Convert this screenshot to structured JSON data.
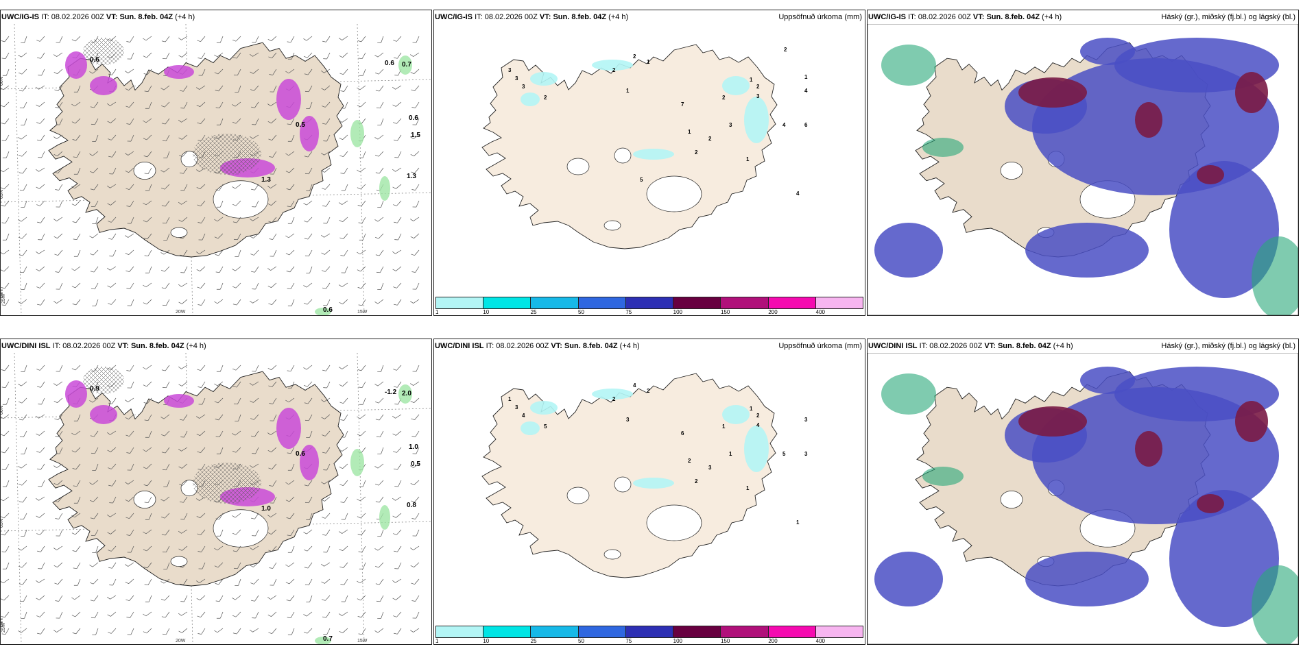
{
  "panels": [
    {
      "model": "UWC/IG-IS",
      "it_label": "IT:",
      "it": "08.02.2026 00Z",
      "vt_label": "VT:",
      "vt": "Sun. 8.feb. 04Z",
      "lead": "(+4 h)",
      "title": "",
      "lat_labels": [
        "66N",
        "65N",
        "64N"
      ],
      "lon_labels": [
        "25W",
        "20W",
        "15W"
      ],
      "values": [
        "0.6",
        "0.7",
        "0.6",
        "1.5",
        "1.3",
        "0.6",
        "0.5",
        "1.3",
        "0.6"
      ]
    },
    {
      "model": "UWC/IG-IS",
      "it_label": "IT:",
      "it": "08.02.2026 00Z",
      "vt_label": "VT:",
      "vt": "Sun. 8.feb. 04Z",
      "lead": "(+4 h)",
      "title": "Uppsöfnuð úrkoma (mm)",
      "values": [
        "2",
        "1",
        "3",
        "3",
        "3",
        "2",
        "2",
        "1",
        "1",
        "2",
        "3",
        "4",
        "6",
        "7",
        "2",
        "1",
        "2",
        "2",
        "1",
        "3",
        "4",
        "4",
        "2",
        "1",
        "5"
      ]
    },
    {
      "model": "UWC/IG-IS",
      "it_label": "IT:",
      "it": "08.02.2026 00Z",
      "vt_label": "VT:",
      "vt": "Sun. 8.feb. 04Z",
      "lead": "(+4 h)",
      "title": "Háský (gr.), miðský (fj.bl.) og lágský (bl.)"
    },
    {
      "model": "UWC/DINI ISL",
      "it_label": "IT:",
      "it": "08.02.2026 00Z",
      "vt_label": "VT:",
      "vt": "Sun. 8.feb. 04Z",
      "lead": "(+4 h)",
      "title": "",
      "lat_labels": [
        "66N",
        "65N",
        "64N"
      ],
      "lon_labels": [
        "25W",
        "20W",
        "15W"
      ],
      "values": [
        "-1.2",
        "2.0",
        "1.0",
        "0.5",
        "0.8",
        "0.7",
        "0.6",
        "1.0",
        "0.9"
      ]
    },
    {
      "model": "UWC/DINI ISL",
      "it_label": "IT:",
      "it": "08.02.2026 00Z",
      "vt_label": "VT:",
      "vt": "Sun. 8.feb. 04Z",
      "lead": "(+4 h)",
      "title": "Uppsöfnuð úrkoma (mm)",
      "values": [
        "4",
        "2",
        "1",
        "3",
        "4",
        "5",
        "2",
        "3",
        "1",
        "2",
        "4",
        "5",
        "3",
        "6",
        "1",
        "2",
        "3",
        "2",
        "1",
        "1",
        "1",
        "3"
      ]
    },
    {
      "model": "UWC/DINI ISL",
      "it_label": "IT:",
      "it": "08.02.2026 00Z",
      "vt_label": "VT:",
      "vt": "Sun. 8.feb. 04Z",
      "lead": "(+4 h)",
      "title": "Háský (gr.), miðský (fj.bl.) og lágský (bl.)"
    }
  ],
  "colorbar": {
    "labels": [
      "1",
      "10",
      "25",
      "50",
      "75",
      "100",
      "150",
      "200",
      "400"
    ],
    "colors": [
      "#b3f5f5",
      "#00e5e5",
      "#17b9e8",
      "#2f67e0",
      "#2d2fb4",
      "#680040",
      "#b0107a",
      "#f50ab0",
      "#f7b5f0"
    ]
  },
  "colors": {
    "land": "#f7ecdf",
    "land_dim": "#e9dccb",
    "sea": "#ffffff",
    "high": "#7a1b45",
    "mid": "#4a4fc4",
    "low": "#1f8fd0",
    "precip_green": "#9fe6a5",
    "precip_magenta": "#c94ad8"
  }
}
